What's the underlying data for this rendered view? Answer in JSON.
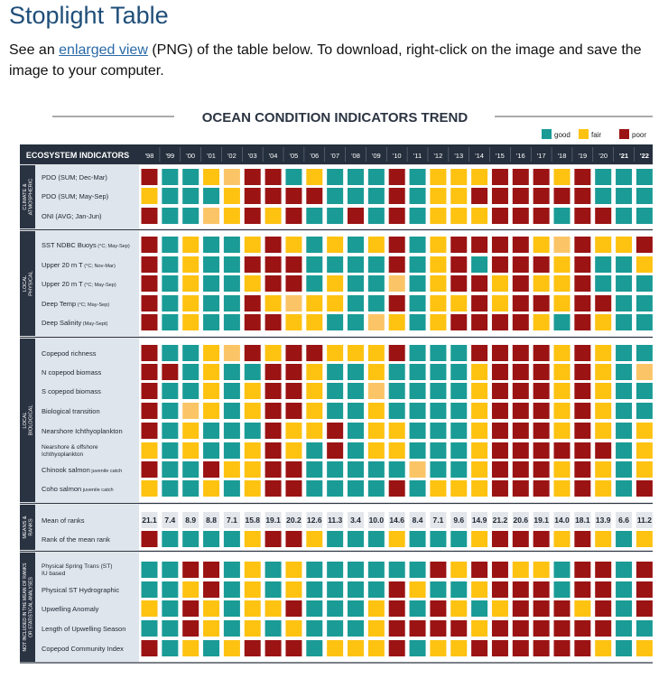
{
  "page": {
    "title": "Stoplight Table",
    "intro_prefix": "See an ",
    "intro_link": "enlarged view",
    "intro_suffix": " (PNG) of the table below. To download, right-click on the image and save the image to your computer."
  },
  "table": {
    "title": "OCEAN CONDITION INDICATORS TREND",
    "legend": [
      {
        "label": "good",
        "color": "#1a9b96"
      },
      {
        "label": "fair",
        "color": "#fec211"
      },
      {
        "label": "poor",
        "color": "#9b1313"
      }
    ],
    "header_label": "ECOSYSTEM INDICATORS",
    "years": [
      "'98",
      "'99",
      "'00",
      "'01",
      "'02",
      "'03",
      "'04",
      "'05",
      "'06",
      "'07",
      "'08",
      "'09",
      "'10",
      "'11",
      "'12",
      "'13",
      "'14",
      "'15",
      "'16",
      "'17",
      "'18",
      "'19",
      "'20",
      "'21",
      "'22"
    ],
    "groups": [
      {
        "label": [
          "CLIMATE &",
          "ATMOSPHERIC"
        ],
        "rows": [
          {
            "label": "PDO (SUM; Dec-Mar)",
            "cells": "PGGFfPPGFGGGPGFFFPPPFPGGG"
          },
          {
            "label": "PDO (SUM; May-Sep)",
            "cells": "FGGGFPPPPGGGPGFFPPPPPPGGG"
          },
          {
            "label": "ONI (AVG; Jan-Jun)",
            "cells": "PGGfFPFPGGPGPGFFFPPPGPPGG"
          }
        ]
      },
      {
        "label": [
          "LOCAL",
          "PHYSICAL"
        ],
        "rows": [
          {
            "label": "SST NDBC Buoys",
            "sub": "(°C; May-Sep)",
            "cells": "PGFGGFPFGFGFPGFPPPPFfPFFP"
          },
          {
            "label": "Upper 20 m T",
            "sub": "(°C; Nov-Mar)",
            "cells": "PGFGGPPPGGGGPGFPGPPPFPGGF"
          },
          {
            "label": "Upper 20 m T",
            "sub": "(°C; May-Sep)",
            "cells": "PGFGGFPPGFGGfGFPPFPFFPGGG"
          },
          {
            "label": "Deep Temp",
            "sub": "(°C; May-Sep)",
            "cells": "PGFGGPFfFFGGPGFFPFPPFPPGG"
          },
          {
            "label": "Deep Salinity",
            "sub": "(May-Sept)",
            "cells": "PGFGGPPFFGGfFGFPPPPFGPFGG"
          }
        ]
      },
      {
        "label": [
          "LOCAL",
          "BIOLOGICAL"
        ],
        "rows": [
          {
            "label": "Copepod richness",
            "cells": "PGGFfPFPPFFFPGGGPPPPFPFGG"
          },
          {
            "label": "N copepod biomass",
            "cells": "PPGFGGPPFGGFGGGGFPPPFPFGf"
          },
          {
            "label": "S copepod biomass",
            "cells": "PGGFGFPPFGGfGGGGFPPPFPFGG"
          },
          {
            "label": "Biological transition",
            "cells": "PGfFGFPPFGGFGGGGFPPPFPFGG"
          },
          {
            "label": "Nearshore Ichthyoplankton",
            "cells": "PGFGGGPFFPGFFGGGFPPPFPFGF"
          },
          {
            "label": "Nearshore & offshore",
            "label2": "Ichthyoplankton",
            "cells": "FGFGGFPFGPGFFGGGFPPPPPPGF"
          },
          {
            "label": "Chinook salmon",
            "sub": "juvenile catch",
            "cells": "PGGPFFPPGGGGGfGGFPPPFPFGF"
          },
          {
            "label": "Coho salmon",
            "sub": "juvenile catch",
            "cells": "FGGFGFPPGGGGPGFFFPPPFPFGP"
          }
        ]
      },
      {
        "label": [
          "MEANS &",
          "RANKS"
        ],
        "rows": [
          {
            "label": "Mean of ranks",
            "values": [
              "21.1",
              "7.4",
              "8.9",
              "8.8",
              "7.1",
              "15.8",
              "19.1",
              "20.2",
              "12.6",
              "11.3",
              "3.4",
              "10.0",
              "14.6",
              "8.4",
              "7.1",
              "9.6",
              "14.9",
              "21.2",
              "20.6",
              "19.1",
              "14.0",
              "18.1",
              "13.9",
              "6.6",
              "11.2"
            ]
          },
          {
            "label": "Rank of the mean rank",
            "cells": "PGGGGFPPFGGGFGGGFPPPFPFGF"
          }
        ]
      },
      {
        "label": [
          "NOT INCLUDED IN THE MEAN OF RANKS",
          "OR STATISTICAL ANALYSES"
        ],
        "rows": [
          {
            "label": "Physical Spring Trans (ST)",
            "label2": "IU based",
            "cells": "GGPPGFGFGGGGGGPFPPFFGPPGP"
          },
          {
            "label": "Physical ST Hydrographic",
            "cells": "GGFPGFGFGGGGPFGGFPPPGPPGP"
          },
          {
            "label": "Upwelling Anomaly",
            "cells": "FGPFGFFPGGGFPGPFGFPPPFPGP"
          },
          {
            "label": "Length of Upwelling Season",
            "cells": "GGPFGFGFGGGFPPPPFPPPPPPGG"
          },
          {
            "label": "Copepod Community Index",
            "cells": "PGFGFPPPGFFFPGFFPPPPPPFGF"
          }
        ]
      }
    ]
  }
}
